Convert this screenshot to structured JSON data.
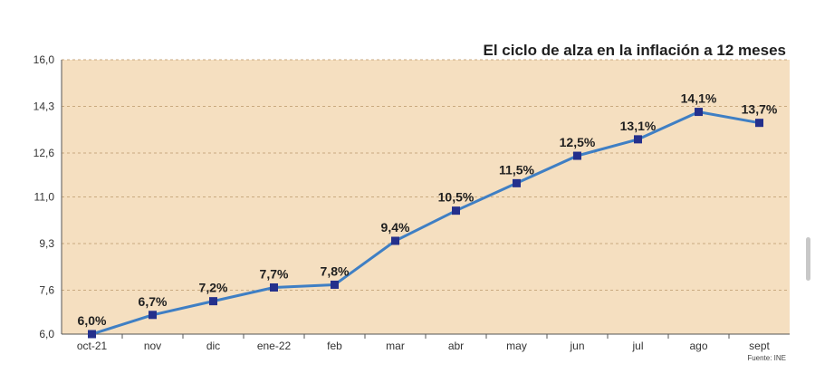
{
  "chart_data": {
    "type": "line",
    "title": "El ciclo de alza en la inflación a 12 meses",
    "source": "Fuente: INE",
    "categories": [
      "oct-21",
      "nov",
      "dic",
      "ene-22",
      "feb",
      "mar",
      "abr",
      "may",
      "jun",
      "jul",
      "ago",
      "sept"
    ],
    "values": [
      6.0,
      6.7,
      7.2,
      7.7,
      7.8,
      9.4,
      10.5,
      11.5,
      12.5,
      13.1,
      14.1,
      13.7
    ],
    "data_labels": [
      "6,0%",
      "6,7%",
      "7,2%",
      "7,7%",
      "7,8%",
      "9,4%",
      "10,5%",
      "11,5%",
      "12,5%",
      "13,1%",
      "14,1%",
      "13,7%"
    ],
    "yticks": [
      6.0,
      7.6,
      9.3,
      11.0,
      12.6,
      14.3,
      16.0
    ],
    "ytick_labels": [
      "6,0",
      "7,6",
      "9,3",
      "11,0",
      "12,6",
      "14,3",
      "16,0"
    ],
    "ylim": [
      6.0,
      16.0
    ],
    "xlabel": "",
    "ylabel": "",
    "grid": true,
    "colors": {
      "plot_background": "#f5dfc0",
      "line": "#3f7fc4",
      "marker": "#24308c",
      "grid": "#c9aa80",
      "axis": "#555555"
    }
  },
  "window": {
    "scrollbar": "scrollbar"
  }
}
